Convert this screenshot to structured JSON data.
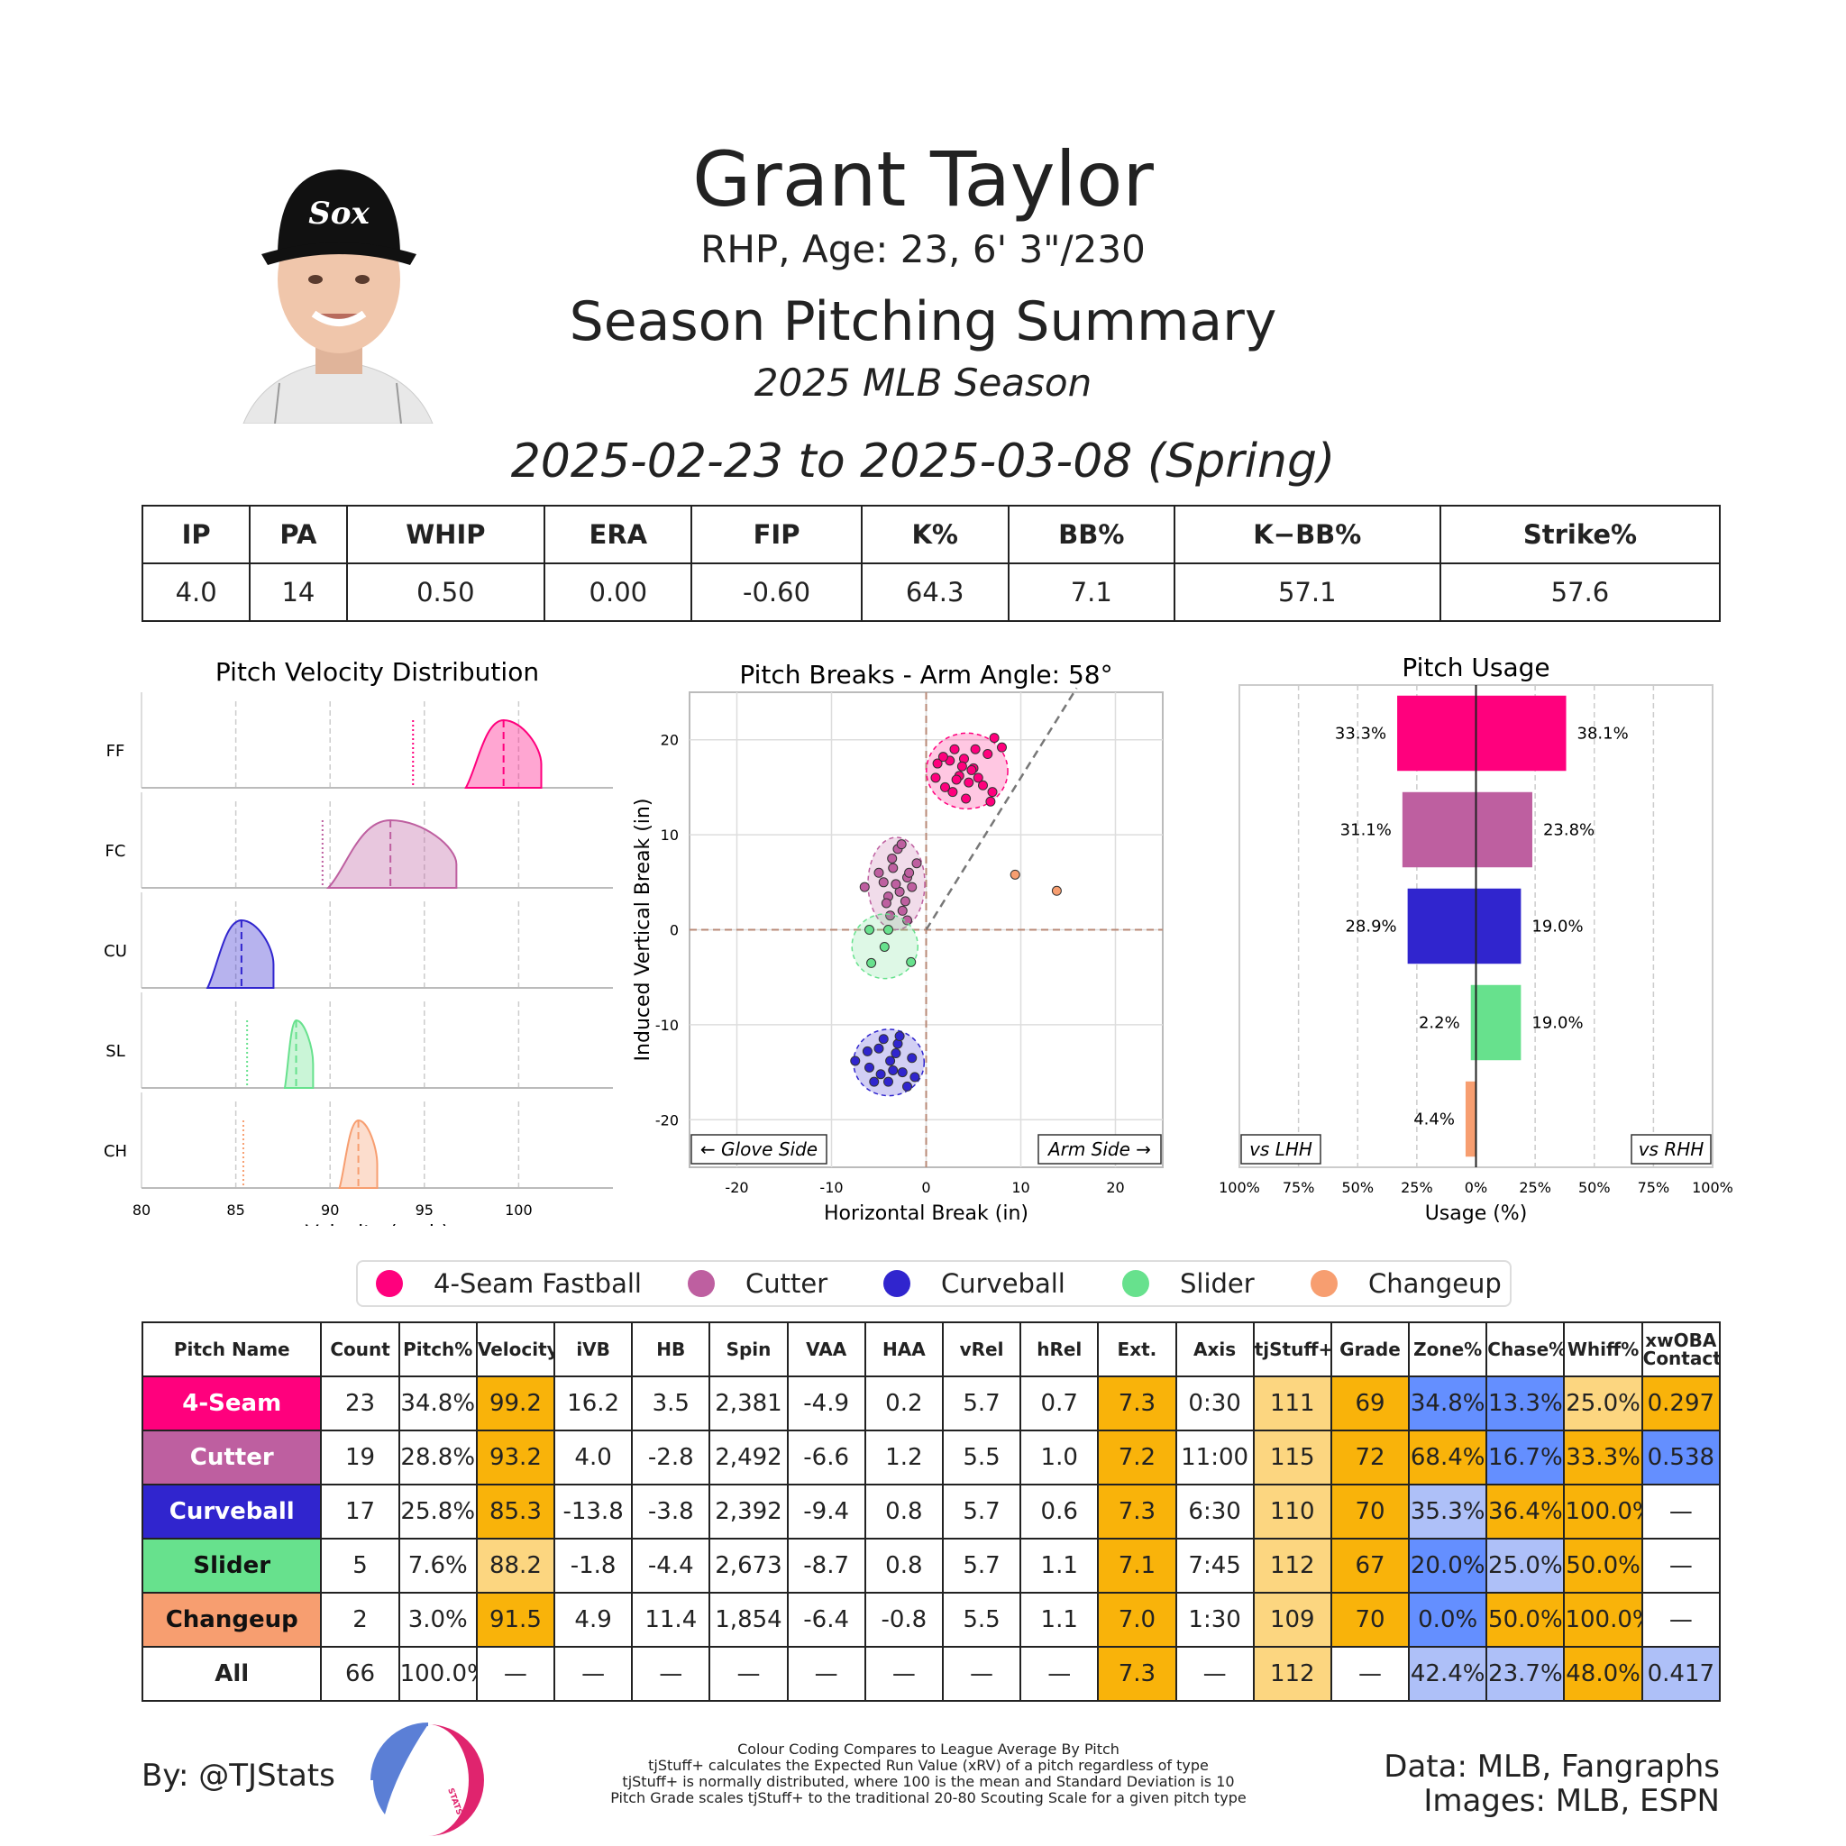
{
  "header": {
    "name": "Grant Taylor",
    "bio": "RHP, Age: 23, 6' 3\"/230",
    "summary_title": "Season Pitching Summary",
    "season": "2025 MLB Season",
    "date_range": "2025-02-23 to 2025-03-08 (Spring)"
  },
  "stats": {
    "headers": [
      "IP",
      "PA",
      "WHIP",
      "ERA",
      "FIP",
      "K%",
      "BB%",
      "K−BB%",
      "Strike%"
    ],
    "values": [
      "4.0",
      "14",
      "0.50",
      "0.00",
      "-0.60",
      "64.3",
      "7.1",
      "57.1",
      "57.6"
    ]
  },
  "colors": {
    "FF": "#FF007D",
    "FC": "#BE5FA0",
    "CU": "#3025CE",
    "SL": "#67E18D",
    "CH": "#F79E70",
    "high": "#F9B30A",
    "mid_high": "#FCD680",
    "low": "#648FFF",
    "mid_low": "#AEC0F8"
  },
  "chart_data": [
    {
      "type": "area",
      "title": "Pitch Velocity Distribution",
      "xlabel": "Velocity (mph)",
      "xlim": [
        80,
        105
      ],
      "xticks": [
        80,
        85,
        90,
        95,
        100
      ],
      "series": [
        {
          "name": "FF",
          "min": 97.2,
          "max": 101.2,
          "mean": 99.2,
          "league_mean": 94.4
        },
        {
          "name": "FC",
          "min": 89.9,
          "max": 96.7,
          "mean": 93.2,
          "league_mean": 89.6
        },
        {
          "name": "CU",
          "min": 83.5,
          "max": 87.0,
          "mean": 85.3,
          "league_mean": null
        },
        {
          "name": "SL",
          "min": 87.6,
          "max": 89.1,
          "mean": 88.2,
          "league_mean": 85.6
        },
        {
          "name": "CH",
          "min": 90.5,
          "max": 92.5,
          "mean": 91.5,
          "league_mean": 85.4
        }
      ]
    },
    {
      "type": "scatter",
      "title": "Pitch Breaks - Arm Angle: 58°",
      "xlabel": "Horizontal Break (in)",
      "ylabel": "Induced Vertical Break (in)",
      "xlim": [
        -25,
        25
      ],
      "ylim": [
        -25,
        25
      ],
      "ticks": [
        -20,
        -10,
        0,
        10,
        20
      ],
      "glove_label": "← Glove Side",
      "arm_label": "Arm Side →",
      "arm_angle_deg": 58,
      "series": [
        {
          "name": "FF",
          "points": [
            [
              3.5,
              16.2
            ],
            [
              1.2,
              17.5
            ],
            [
              2.0,
              15.0
            ],
            [
              4.0,
              18.0
            ],
            [
              5.5,
              16.0
            ],
            [
              6.5,
              18.5
            ],
            [
              7.2,
              20.2
            ],
            [
              5.0,
              17.0
            ],
            [
              3.0,
              19.0
            ],
            [
              4.5,
              15.5
            ],
            [
              2.5,
              17.8
            ],
            [
              6.0,
              15.2
            ],
            [
              7.0,
              14.5
            ],
            [
              1.0,
              16.0
            ],
            [
              5.2,
              19.0
            ],
            [
              3.8,
              17.2
            ],
            [
              4.2,
              13.8
            ],
            [
              2.8,
              14.5
            ],
            [
              8.0,
              19.2
            ],
            [
              6.8,
              13.5
            ],
            [
              1.8,
              18.2
            ],
            [
              4.8,
              16.8
            ],
            [
              3.2,
              15.8
            ]
          ]
        },
        {
          "name": "FC",
          "points": [
            [
              -2.8,
              4.0
            ],
            [
              -3.5,
              6.5
            ],
            [
              -2.0,
              5.5
            ],
            [
              -4.0,
              3.5
            ],
            [
              -1.5,
              4.5
            ],
            [
              -3.0,
              8.5
            ],
            [
              -2.5,
              2.0
            ],
            [
              -4.5,
              5.0
            ],
            [
              -1.0,
              7.0
            ],
            [
              -3.8,
              1.5
            ],
            [
              -2.2,
              3.0
            ],
            [
              -5.0,
              6.0
            ],
            [
              -1.8,
              6.0
            ],
            [
              -3.2,
              4.8
            ],
            [
              -4.2,
              2.8
            ],
            [
              -2.6,
              9.0
            ],
            [
              -6.5,
              4.5
            ],
            [
              -2.0,
              1.0
            ],
            [
              -3.6,
              7.5
            ]
          ]
        },
        {
          "name": "CU",
          "points": [
            [
              -3.8,
              -13.8
            ],
            [
              -5.0,
              -12.5
            ],
            [
              -2.5,
              -15.0
            ],
            [
              -4.0,
              -16.0
            ],
            [
              -6.0,
              -14.5
            ],
            [
              -3.0,
              -12.0
            ],
            [
              -1.5,
              -13.5
            ],
            [
              -4.5,
              -11.5
            ],
            [
              -5.5,
              -16.0
            ],
            [
              -2.0,
              -16.5
            ],
            [
              -7.5,
              -13.8
            ],
            [
              -3.5,
              -14.8
            ],
            [
              -1.2,
              -15.5
            ],
            [
              -2.8,
              -11.2
            ],
            [
              -4.8,
              -15.2
            ],
            [
              -6.2,
              -12.8
            ],
            [
              -3.2,
              -13.0
            ]
          ]
        },
        {
          "name": "SL",
          "points": [
            [
              -4.4,
              -1.8
            ],
            [
              -6.0,
              0.0
            ],
            [
              -4.0,
              0.0
            ],
            [
              -5.8,
              -3.5
            ],
            [
              -1.6,
              -3.4
            ]
          ]
        },
        {
          "name": "CH",
          "points": [
            [
              9.4,
              5.8
            ],
            [
              13.8,
              4.1
            ]
          ]
        }
      ]
    },
    {
      "type": "bar",
      "title": "Pitch Usage",
      "xlabel": "Usage (%)",
      "xticks": [
        "100%",
        "75%",
        "50%",
        "25%",
        "0%",
        "25%",
        "50%",
        "75%",
        "100%"
      ],
      "lhh_label": "vs LHH",
      "rhh_label": "vs RHH",
      "categories": [
        "FF",
        "FC",
        "CU",
        "SL",
        "CH"
      ],
      "series": [
        {
          "name": "vs LHH",
          "values": [
            33.3,
            31.1,
            28.9,
            2.2,
            4.4
          ]
        },
        {
          "name": "vs RHH",
          "values": [
            38.1,
            23.8,
            19.0,
            19.0,
            0
          ]
        }
      ]
    }
  ],
  "legend": [
    {
      "code": "FF",
      "label": "4-Seam Fastball"
    },
    {
      "code": "FC",
      "label": "Cutter"
    },
    {
      "code": "CU",
      "label": "Curveball"
    },
    {
      "code": "SL",
      "label": "Slider"
    },
    {
      "code": "CH",
      "label": "Changeup"
    }
  ],
  "pitch_table": {
    "headers": [
      "Pitch Name",
      "Count",
      "Pitch%",
      "Velocity",
      "iVB",
      "HB",
      "Spin",
      "VAA",
      "HAA",
      "vRel",
      "hRel",
      "Ext.",
      "Axis",
      "tjStuff+",
      "Grade",
      "Zone%",
      "Chase%",
      "Whiff%",
      "xwOBA Contact"
    ],
    "rows": [
      {
        "code": "FF",
        "cells": [
          "4-Seam",
          "23",
          "34.8%",
          "99.2",
          "16.2",
          "3.5",
          "2,381",
          "-4.9",
          "0.2",
          "5.7",
          "0.7",
          "7.3",
          "0:30",
          "111",
          "69",
          "34.8%",
          "13.3%",
          "25.0%",
          "0.297"
        ],
        "shade": [
          "",
          "",
          "",
          "high",
          "",
          "",
          "",
          "",
          "",
          "",
          "",
          "high",
          "",
          "mid_high",
          "high",
          "low",
          "low",
          "mid_high",
          "high"
        ]
      },
      {
        "code": "FC",
        "cells": [
          "Cutter",
          "19",
          "28.8%",
          "93.2",
          "4.0",
          "-2.8",
          "2,492",
          "-6.6",
          "1.2",
          "5.5",
          "1.0",
          "7.2",
          "11:00",
          "115",
          "72",
          "68.4%",
          "16.7%",
          "33.3%",
          "0.538"
        ],
        "shade": [
          "",
          "",
          "",
          "high",
          "",
          "",
          "",
          "",
          "",
          "",
          "",
          "high",
          "",
          "mid_high",
          "high",
          "high",
          "low",
          "high",
          "low"
        ]
      },
      {
        "code": "CU",
        "cells": [
          "Curveball",
          "17",
          "25.8%",
          "85.3",
          "-13.8",
          "-3.8",
          "2,392",
          "-9.4",
          "0.8",
          "5.7",
          "0.6",
          "7.3",
          "6:30",
          "110",
          "70",
          "35.3%",
          "36.4%",
          "100.0%",
          "—"
        ],
        "shade": [
          "",
          "",
          "",
          "high",
          "",
          "",
          "",
          "",
          "",
          "",
          "",
          "high",
          "",
          "mid_high",
          "high",
          "mid_low",
          "high",
          "high",
          ""
        ]
      },
      {
        "code": "SL",
        "cells": [
          "Slider",
          "5",
          "7.6%",
          "88.2",
          "-1.8",
          "-4.4",
          "2,673",
          "-8.7",
          "0.8",
          "5.7",
          "1.1",
          "7.1",
          "7:45",
          "112",
          "67",
          "20.0%",
          "25.0%",
          "50.0%",
          "—"
        ],
        "shade": [
          "",
          "",
          "",
          "mid_high",
          "",
          "",
          "",
          "",
          "",
          "",
          "",
          "high",
          "",
          "mid_high",
          "high",
          "low",
          "mid_low",
          "high",
          ""
        ]
      },
      {
        "code": "CH",
        "cells": [
          "Changeup",
          "2",
          "3.0%",
          "91.5",
          "4.9",
          "11.4",
          "1,854",
          "-6.4",
          "-0.8",
          "5.5",
          "1.1",
          "7.0",
          "1:30",
          "109",
          "70",
          "0.0%",
          "50.0%",
          "100.0%",
          "—"
        ],
        "shade": [
          "",
          "",
          "",
          "high",
          "",
          "",
          "",
          "",
          "",
          "",
          "",
          "high",
          "",
          "mid_high",
          "high",
          "low",
          "high",
          "high",
          ""
        ]
      },
      {
        "code": "ALL",
        "cells": [
          "All",
          "66",
          "100.0%",
          "—",
          "—",
          "—",
          "—",
          "—",
          "—",
          "—",
          "—",
          "7.3",
          "—",
          "112",
          "—",
          "42.4%",
          "23.7%",
          "48.0%",
          "0.417"
        ],
        "shade": [
          "",
          "",
          "",
          "",
          "",
          "",
          "",
          "",
          "",
          "",
          "",
          "high",
          "",
          "mid_high",
          "",
          "mid_low",
          "mid_low",
          "high",
          "mid_low"
        ]
      }
    ]
  },
  "footer": {
    "byline": "By: @TJStats",
    "logo_text": "STATS",
    "notes": [
      "Colour Coding Compares to League Average By Pitch",
      "tjStuff+ calculates the Expected Run Value (xRV) of a pitch regardless of type",
      "tjStuff+ is normally distributed, where 100 is the mean and Standard Deviation is 10",
      "Pitch Grade scales tjStuff+ to the traditional 20-80 Scouting Scale for a given pitch type"
    ],
    "data_source": "Data: MLB, Fangraphs",
    "image_source": "Images: MLB, ESPN"
  }
}
